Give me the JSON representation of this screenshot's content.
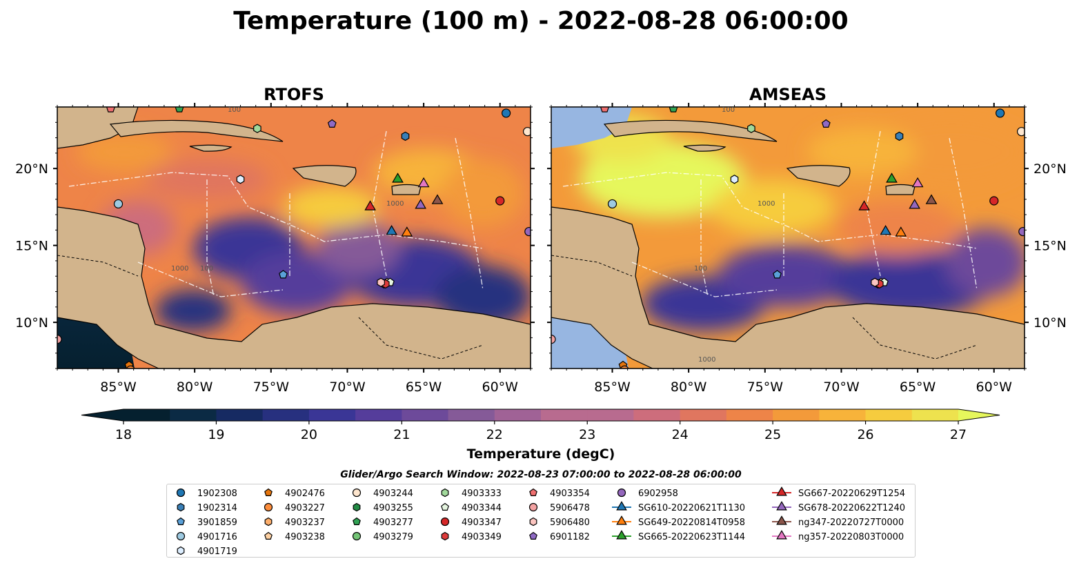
{
  "title": "Temperature (100 m) - 2022-08-28 06:00:00",
  "colors": {
    "land": "#d2b48c",
    "water_mask": "#97b6e1",
    "eez_line": "#ffffff",
    "border_line": "#000000",
    "cmap": [
      "#05202f",
      "#0b2a44",
      "#162a62",
      "#27307f",
      "#3a3696",
      "#553d9b",
      "#6d4a9a",
      "#855a98",
      "#a06296",
      "#b86b8f",
      "#cd6d7c",
      "#e0765f",
      "#ee8448",
      "#f39a3a",
      "#f7b33a",
      "#f6cc3e",
      "#eee24e",
      "#e6f75c"
    ]
  },
  "chart_data": [
    {
      "type": "heatmap",
      "title": "RTOFS",
      "xlim": [
        -89,
        -58
      ],
      "ylim": [
        7,
        24
      ],
      "xticks": [
        -85,
        -80,
        -75,
        -70,
        -65,
        -60
      ],
      "xtick_labels": [
        "85°W",
        "80°W",
        "75°W",
        "70°W",
        "65°W",
        "60°W"
      ],
      "yticks": [
        10,
        15,
        20
      ],
      "ytick_labels": [
        "10°N",
        "15°N",
        "20°N"
      ],
      "ytick_side": "left"
    },
    {
      "type": "heatmap",
      "title": "AMSEAS",
      "xlim": [
        -89,
        -58
      ],
      "ylim": [
        7,
        24
      ],
      "xticks": [
        -85,
        -80,
        -75,
        -70,
        -65,
        -60
      ],
      "xtick_labels": [
        "85°W",
        "80°W",
        "75°W",
        "70°W",
        "65°W",
        "60°W"
      ],
      "yticks": [
        10,
        15,
        20
      ],
      "ytick_labels": [
        "10°N",
        "15°N",
        "20°N"
      ],
      "ytick_side": "right"
    }
  ],
  "colorbar": {
    "label": "Temperature (degC)",
    "min": 17.5,
    "max": 27.5,
    "ticks": [
      18,
      19,
      20,
      21,
      22,
      23,
      24,
      25,
      26,
      27
    ],
    "extend": "both"
  },
  "contour_labels": [
    "100",
    "1000"
  ],
  "legend": {
    "title": "Glider/Argo Search Window: 2022-08-23 07:00:00 to 2022-08-28 06:00:00",
    "columns": [
      [
        {
          "label": "1902308",
          "marker": "circle",
          "color": "#1f77b4"
        },
        {
          "label": "1902314",
          "marker": "hexagon",
          "color": "#3a7fb6"
        },
        {
          "label": "3901859",
          "marker": "pentagon",
          "color": "#5aa0d8"
        },
        {
          "label": "4901716",
          "marker": "circle",
          "color": "#9ecae1"
        },
        {
          "label": "4901719",
          "marker": "hexagon",
          "color": "#ddeeff"
        }
      ],
      [
        {
          "label": "4902476",
          "marker": "pentagon",
          "color": "#e6750d"
        },
        {
          "label": "4903227",
          "marker": "circle",
          "color": "#fd8d3c"
        },
        {
          "label": "4903237",
          "marker": "hexagon",
          "color": "#fdae6b"
        },
        {
          "label": "4903238",
          "marker": "pentagon",
          "color": "#fdd0a2"
        }
      ],
      [
        {
          "label": "4903244",
          "marker": "circle",
          "color": "#fee6ce"
        },
        {
          "label": "4903255",
          "marker": "hexagon",
          "color": "#238b45"
        },
        {
          "label": "4903277",
          "marker": "pentagon",
          "color": "#31a354"
        },
        {
          "label": "4903279",
          "marker": "circle",
          "color": "#74c476"
        }
      ],
      [
        {
          "label": "4903333",
          "marker": "hexagon",
          "color": "#a1d99b"
        },
        {
          "label": "4903344",
          "marker": "pentagon",
          "color": "#e5f5e0"
        },
        {
          "label": "4903347",
          "marker": "circle",
          "color": "#d62728"
        },
        {
          "label": "4903349",
          "marker": "hexagon",
          "color": "#de3b3b"
        }
      ],
      [
        {
          "label": "4903354",
          "marker": "pentagon",
          "color": "#ef6f6f"
        },
        {
          "label": "5906478",
          "marker": "circle",
          "color": "#f4a3a3"
        },
        {
          "label": "5906480",
          "marker": "hexagon",
          "color": "#fcc5c0"
        },
        {
          "label": "6901182",
          "marker": "pentagon",
          "color": "#8f6ac4"
        }
      ],
      [
        {
          "label": "6902958",
          "marker": "circle",
          "color": "#9467bd"
        },
        {
          "label": "SG610-20220621T1130",
          "marker": "triangle",
          "color": "#1f77b4"
        },
        {
          "label": "SG649-20220814T0958",
          "marker": "triangle",
          "color": "#ff7f0e"
        },
        {
          "label": "SG665-20220623T1144",
          "marker": "triangle",
          "color": "#2ca02c"
        }
      ],
      [
        {
          "label": "SG667-20220629T1254",
          "marker": "triangle",
          "color": "#d62728"
        },
        {
          "label": "SG678-20220622T1240",
          "marker": "triangle",
          "color": "#9467bd"
        },
        {
          "label": "ng347-20220727T0000",
          "marker": "triangle",
          "color": "#8c564b"
        },
        {
          "label": "ng357-20220803T0000",
          "marker": "triangle",
          "color": "#e377c2"
        }
      ]
    ]
  },
  "observations": [
    {
      "id": "1902308",
      "lon": -59.6,
      "lat": 23.6
    },
    {
      "id": "1902314",
      "lon": -66.2,
      "lat": 22.1
    },
    {
      "id": "3901859",
      "lon": -74.2,
      "lat": 13.1
    },
    {
      "id": "4901716",
      "lon": -85.0,
      "lat": 17.7
    },
    {
      "id": "4901719",
      "lon": -77.0,
      "lat": 19.3
    },
    {
      "id": "4902476",
      "lon": -84.3,
      "lat": 7.2
    },
    {
      "id": "4903227",
      "lon": -84.2,
      "lat": 6.9
    },
    {
      "id": "4903237",
      "lon": -67.6,
      "lat": 12.5
    },
    {
      "id": "4903238",
      "lon": -67.4,
      "lat": 12.6
    },
    {
      "id": "4903244",
      "lon": -58.2,
      "lat": 22.4
    },
    {
      "id": "4903255",
      "lon": -80.0,
      "lat": 24.4
    },
    {
      "id": "4903277",
      "lon": -81.0,
      "lat": 23.9
    },
    {
      "id": "4903279",
      "lon": -80.5,
      "lat": 24.3
    },
    {
      "id": "4903333",
      "lon": -75.9,
      "lat": 22.6
    },
    {
      "id": "4903344",
      "lon": -67.2,
      "lat": 12.6
    },
    {
      "id": "4903347",
      "lon": -60.0,
      "lat": 17.9
    },
    {
      "id": "4903349",
      "lon": -67.5,
      "lat": 12.5
    },
    {
      "id": "4903354",
      "lon": -85.5,
      "lat": 23.9
    },
    {
      "id": "5906478",
      "lon": -89.0,
      "lat": 8.9
    },
    {
      "id": "5906480",
      "lon": -67.8,
      "lat": 12.6
    },
    {
      "id": "6901182",
      "lon": -71.0,
      "lat": 22.9
    },
    {
      "id": "6902958",
      "lon": -58.1,
      "lat": 15.9
    },
    {
      "id": "SG610-20220621T1130",
      "lon": -67.1,
      "lat": 15.9
    },
    {
      "id": "SG649-20220814T0958",
      "lon": -66.1,
      "lat": 15.8
    },
    {
      "id": "SG665-20220623T1144",
      "lon": -66.7,
      "lat": 19.3
    },
    {
      "id": "SG667-20220629T1254",
      "lon": -68.5,
      "lat": 17.5
    },
    {
      "id": "SG678-20220622T1240",
      "lon": -65.2,
      "lat": 17.6
    },
    {
      "id": "ng347-20220727T0000",
      "lon": -64.1,
      "lat": 17.9
    },
    {
      "id": "ng357-20220803T0000",
      "lon": -65.0,
      "lat": 19.0
    }
  ]
}
